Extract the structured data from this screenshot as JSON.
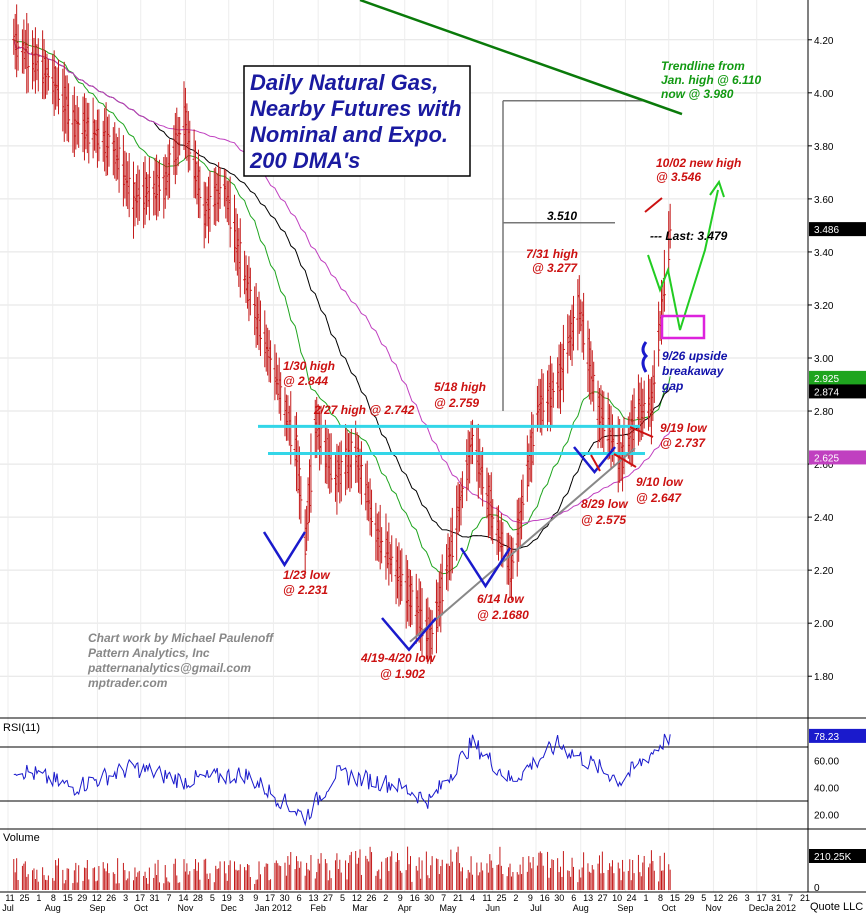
{
  "colors": {
    "candle": "#c41a1a",
    "ema": "#1fa51f",
    "sma": "#000000",
    "dma_magenta": "#c040c0",
    "cyan": "#33d6e8",
    "trend": "#0a7a0a",
    "annot_red": "#cc1111",
    "annot_green": "#119911",
    "annot_blue": "#1111aa",
    "gray": "#888888",
    "rsi": "#1a1acc"
  },
  "title_box": {
    "lines": [
      "Daily Natural Gas,",
      "Nearby Futures with",
      "Nominal and Expo.",
      "200 DMA's"
    ]
  },
  "credits": [
    "Chart work by Michael Paulenoff",
    "Pattern Analytics, Inc",
    "patternanalytics@gmail.com",
    "mptrader.com"
  ],
  "price_axis": {
    "ticks": [
      "4.20",
      "4.00",
      "3.80",
      "3.60",
      "3.40",
      "3.20",
      "3.00",
      "2.80",
      "2.60",
      "2.40",
      "2.20",
      "2.00",
      "1.80"
    ],
    "last_tags": [
      {
        "text": "3.486",
        "value": 3.486,
        "bg": "#000000",
        "fg": "#ffffff"
      },
      {
        "text": "2.925",
        "value": 2.925,
        "bg": "#1fa51f",
        "fg": "#ffffff"
      },
      {
        "text": "2.874",
        "value": 2.874,
        "bg": "#000000",
        "fg": "#ffffff"
      },
      {
        "text": "2.625",
        "value": 2.625,
        "bg": "#c040c0",
        "fg": "#ffffff"
      }
    ]
  },
  "rsi_panel": {
    "label": "RSI(11)",
    "ticks": [
      "60.00",
      "40.00",
      "20.00"
    ],
    "last": "78.23"
  },
  "volume_panel": {
    "label": "Volume",
    "last": "210.25K",
    "zero": "0"
  },
  "x_axis": {
    "day_labels": [
      "11",
      "25",
      "1",
      "8",
      "15",
      "29",
      "12",
      "26",
      "3",
      "17",
      "31",
      "7",
      "14",
      "28",
      "5",
      "19",
      "3",
      "9",
      "17",
      "30",
      "6",
      "13",
      "27",
      "5",
      "12",
      "26",
      "2",
      "9",
      "16",
      "30",
      "7",
      "21",
      "4",
      "11",
      "25",
      "2",
      "9",
      "16",
      "30",
      "6",
      "13",
      "27",
      "10",
      "24",
      "1",
      "8",
      "15",
      "29",
      "5",
      "12",
      "26",
      "3",
      "17",
      "31",
      "7",
      "21"
    ],
    "months": [
      "Jul",
      "Aug",
      "Sep",
      "Oct",
      "Nov",
      "Dec",
      "Jan 2012",
      "Feb",
      "Mar",
      "Apr",
      "May",
      "Jun",
      "Jul",
      "Aug",
      "Sep",
      "Oct",
      "Nov",
      "Dec",
      "Ja 2012"
    ],
    "footer": "Quote LLC"
  },
  "annotations": {
    "trendline": [
      "Trendline from",
      "Jan. high @ 6.110",
      "now @ 3.980"
    ],
    "new_high": [
      "10/02 new high",
      "@ 3.546"
    ],
    "last": "--- Last:  3.479",
    "level_3510": "3.510",
    "jul31": [
      "7/31 high",
      "@ 3.277"
    ],
    "jan30": [
      "1/30 high",
      "@ 2.844"
    ],
    "feb27": "2/27 high @ 2.742",
    "may18": [
      "5/18 high",
      "@ 2.759"
    ],
    "sep26": [
      "9/26 upside",
      "breakaway",
      "gap"
    ],
    "sep19": [
      "9/19 low",
      "@ 2.737"
    ],
    "sep10": [
      "9/10 low",
      "@ 2.647"
    ],
    "aug29": [
      "8/29 low",
      "@ 2.575"
    ],
    "jun14": [
      "6/14 low",
      "@ 2.1680"
    ],
    "jan23": [
      "1/23 low",
      "@ 2.231"
    ],
    "apr19": [
      "4/19-4/20 low",
      "@ 1.902"
    ]
  },
  "chart_data": {
    "type": "candlestick",
    "title": "Daily Natural Gas, Nearby Futures with Nominal and Expo. 200 DMA's",
    "x_range": [
      "2011-07",
      "2012-12"
    ],
    "y_range": [
      1.65,
      4.35
    ],
    "grid": true,
    "price_anchors": [
      {
        "date": "2011-07-05",
        "close": 4.2
      },
      {
        "date": "2011-08-01",
        "close": 4.05
      },
      {
        "date": "2011-08-15",
        "close": 3.9
      },
      {
        "date": "2011-09-12",
        "close": 3.8
      },
      {
        "date": "2011-09-26",
        "close": 3.6
      },
      {
        "date": "2011-10-17",
        "close": 3.65
      },
      {
        "date": "2011-10-31",
        "close": 3.9
      },
      {
        "date": "2011-11-14",
        "close": 3.55
      },
      {
        "date": "2011-11-28",
        "close": 3.65
      },
      {
        "date": "2011-12-12",
        "close": 3.3
      },
      {
        "date": "2011-12-30",
        "close": 3.0
      },
      {
        "date": "2012-01-17",
        "close": 2.65
      },
      {
        "date": "2012-01-23",
        "close": 2.3
      },
      {
        "date": "2012-01-30",
        "close": 2.75
      },
      {
        "date": "2012-02-13",
        "close": 2.55
      },
      {
        "date": "2012-02-27",
        "close": 2.65
      },
      {
        "date": "2012-03-12",
        "close": 2.35
      },
      {
        "date": "2012-03-26",
        "close": 2.2
      },
      {
        "date": "2012-04-19",
        "close": 1.95
      },
      {
        "date": "2012-05-04",
        "close": 2.3
      },
      {
        "date": "2012-05-18",
        "close": 2.7
      },
      {
        "date": "2012-06-01",
        "close": 2.4
      },
      {
        "date": "2012-06-14",
        "close": 2.2
      },
      {
        "date": "2012-07-02",
        "close": 2.8
      },
      {
        "date": "2012-07-16",
        "close": 2.9
      },
      {
        "date": "2012-07-31",
        "close": 3.2
      },
      {
        "date": "2012-08-13",
        "close": 2.8
      },
      {
        "date": "2012-08-29",
        "close": 2.62
      },
      {
        "date": "2012-09-10",
        "close": 2.8
      },
      {
        "date": "2012-09-19",
        "close": 2.82
      },
      {
        "date": "2012-10-02",
        "close": 3.48
      }
    ],
    "rsi_range": [
      10,
      90
    ],
    "rsi_anchors": [
      {
        "date": "2011-07-05",
        "value": 55
      },
      {
        "date": "2011-08-15",
        "value": 40
      },
      {
        "date": "2011-09-26",
        "value": 55
      },
      {
        "date": "2011-10-31",
        "value": 45
      },
      {
        "date": "2011-12-12",
        "value": 50
      },
      {
        "date": "2012-01-23",
        "value": 18
      },
      {
        "date": "2012-02-13",
        "value": 50
      },
      {
        "date": "2012-03-26",
        "value": 42
      },
      {
        "date": "2012-04-19",
        "value": 30
      },
      {
        "date": "2012-05-18",
        "value": 73
      },
      {
        "date": "2012-06-14",
        "value": 45
      },
      {
        "date": "2012-07-16",
        "value": 72
      },
      {
        "date": "2012-08-29",
        "value": 45
      },
      {
        "date": "2012-10-02",
        "value": 78.23
      }
    ],
    "indicators": [
      {
        "name": "EMA 200",
        "last": 2.925
      },
      {
        "name": "SMA 200",
        "last": 2.874
      },
      {
        "name": "Magenta DMA",
        "last": 2.625
      }
    ],
    "levels": [
      {
        "label": "2/27 high @ 2.742",
        "value": 2.742
      },
      {
        "label": "cyan lower",
        "value": 2.64
      },
      {
        "label": "3.510",
        "value": 3.51
      }
    ],
    "trendline": {
      "label": "Jan. high @ 6.110 now @ 3.980",
      "end_value": 3.98
    },
    "last_volume": "210.25K"
  }
}
